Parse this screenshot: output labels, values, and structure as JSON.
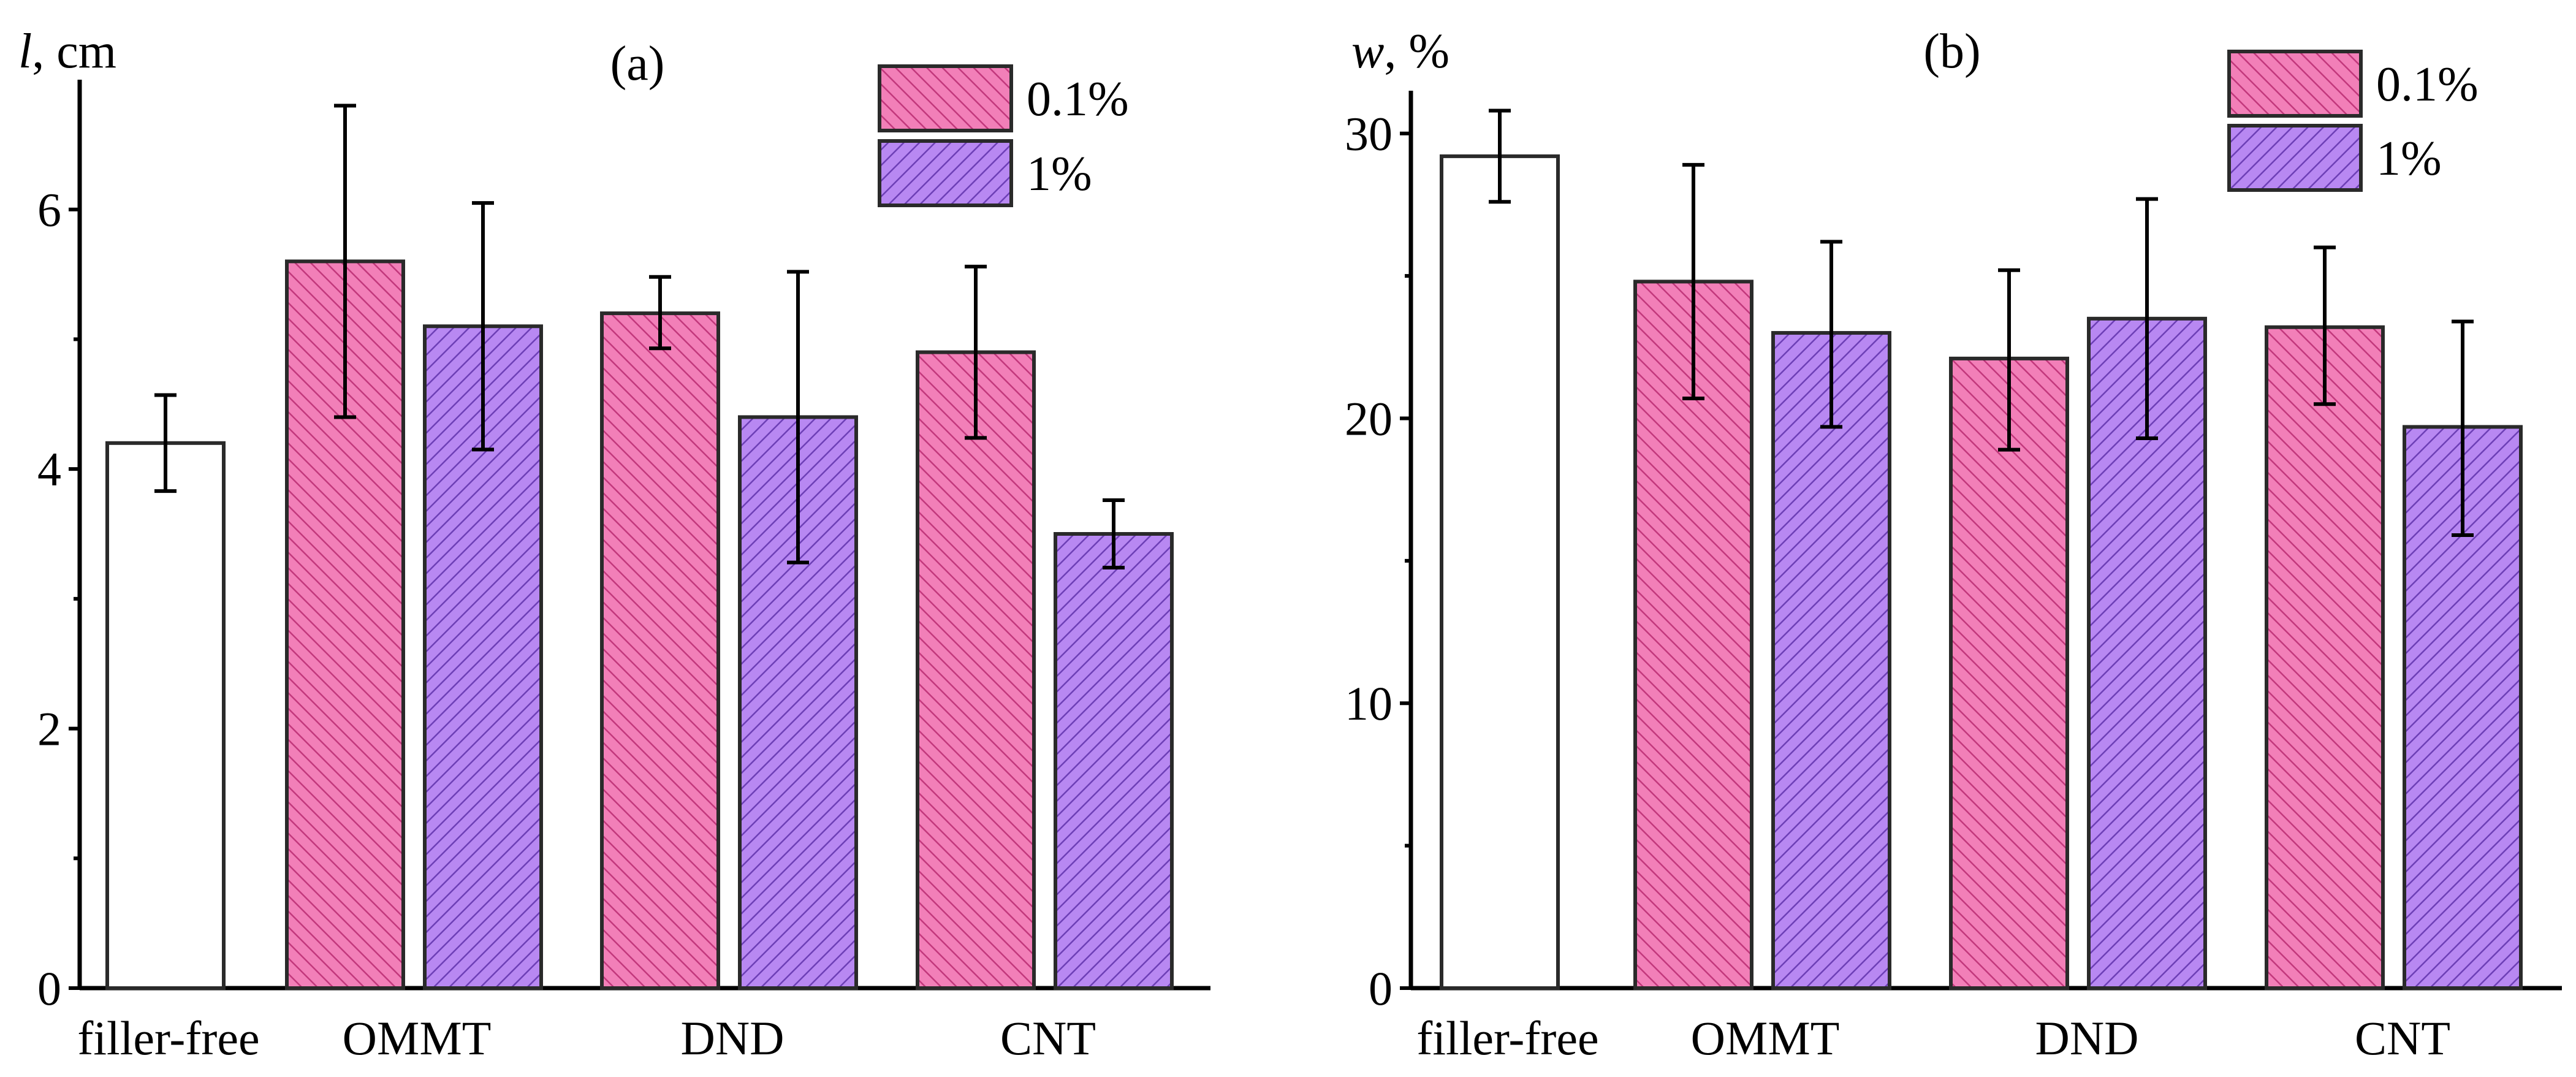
{
  "colors": {
    "s01": "#f27fb8",
    "s01_hatch": "#c2387c",
    "s1": "#b888f2",
    "s1_hatch": "#6d3fb6",
    "filler_free": "#ffffff"
  },
  "chart_data": [
    {
      "type": "bar",
      "panel": "(a)",
      "ylabel_var": "l",
      "ylabel_unit": ", cm",
      "ylim": [
        0,
        7
      ],
      "yticks": [
        "0",
        "2",
        "4",
        "6"
      ],
      "categories": [
        "filler-free",
        "OMMT",
        "DND",
        "CNT"
      ],
      "legend": [
        "0.1%",
        "1%"
      ],
      "legend_position": "top-right",
      "bars": [
        {
          "category": "filler-free",
          "series": "none",
          "value": 4.2,
          "err_low": 3.83,
          "err_high": 4.57
        },
        {
          "category": "OMMT",
          "series": "0.1%",
          "value": 5.6,
          "err_low": 4.4,
          "err_high": 6.8
        },
        {
          "category": "OMMT",
          "series": "1%",
          "value": 5.1,
          "err_low": 4.15,
          "err_high": 6.05
        },
        {
          "category": "DND",
          "series": "0.1%",
          "value": 5.2,
          "err_low": 4.93,
          "err_high": 5.48
        },
        {
          "category": "DND",
          "series": "1%",
          "value": 4.4,
          "err_low": 3.28,
          "err_high": 5.52
        },
        {
          "category": "CNT",
          "series": "0.1%",
          "value": 4.9,
          "err_low": 4.24,
          "err_high": 5.56
        },
        {
          "category": "CNT",
          "series": "1%",
          "value": 3.5,
          "err_low": 3.24,
          "err_high": 3.76
        }
      ]
    },
    {
      "type": "bar",
      "panel": "(b)",
      "ylabel_var": "w",
      "ylabel_unit": ", %",
      "ylim": [
        0,
        31.5
      ],
      "yticks": [
        "0",
        "10",
        "20",
        "30"
      ],
      "categories": [
        "filler-free",
        "OMMT",
        "DND",
        "CNT"
      ],
      "legend": [
        "0.1%",
        "1%"
      ],
      "legend_position": "top-right",
      "bars": [
        {
          "category": "filler-free",
          "series": "none",
          "value": 29.2,
          "err_low": 27.6,
          "err_high": 30.8
        },
        {
          "category": "OMMT",
          "series": "0.1%",
          "value": 24.8,
          "err_low": 20.7,
          "err_high": 28.9
        },
        {
          "category": "OMMT",
          "series": "1%",
          "value": 23.0,
          "err_low": 19.7,
          "err_high": 26.2
        },
        {
          "category": "DND",
          "series": "0.1%",
          "value": 22.1,
          "err_low": 18.9,
          "err_high": 25.2
        },
        {
          "category": "DND",
          "series": "1%",
          "value": 23.5,
          "err_low": 19.3,
          "err_high": 27.7
        },
        {
          "category": "CNT",
          "series": "0.1%",
          "value": 23.2,
          "err_low": 20.5,
          "err_high": 26.0
        },
        {
          "category": "CNT",
          "series": "1%",
          "value": 19.7,
          "err_low": 15.9,
          "err_high": 23.4
        }
      ]
    }
  ]
}
